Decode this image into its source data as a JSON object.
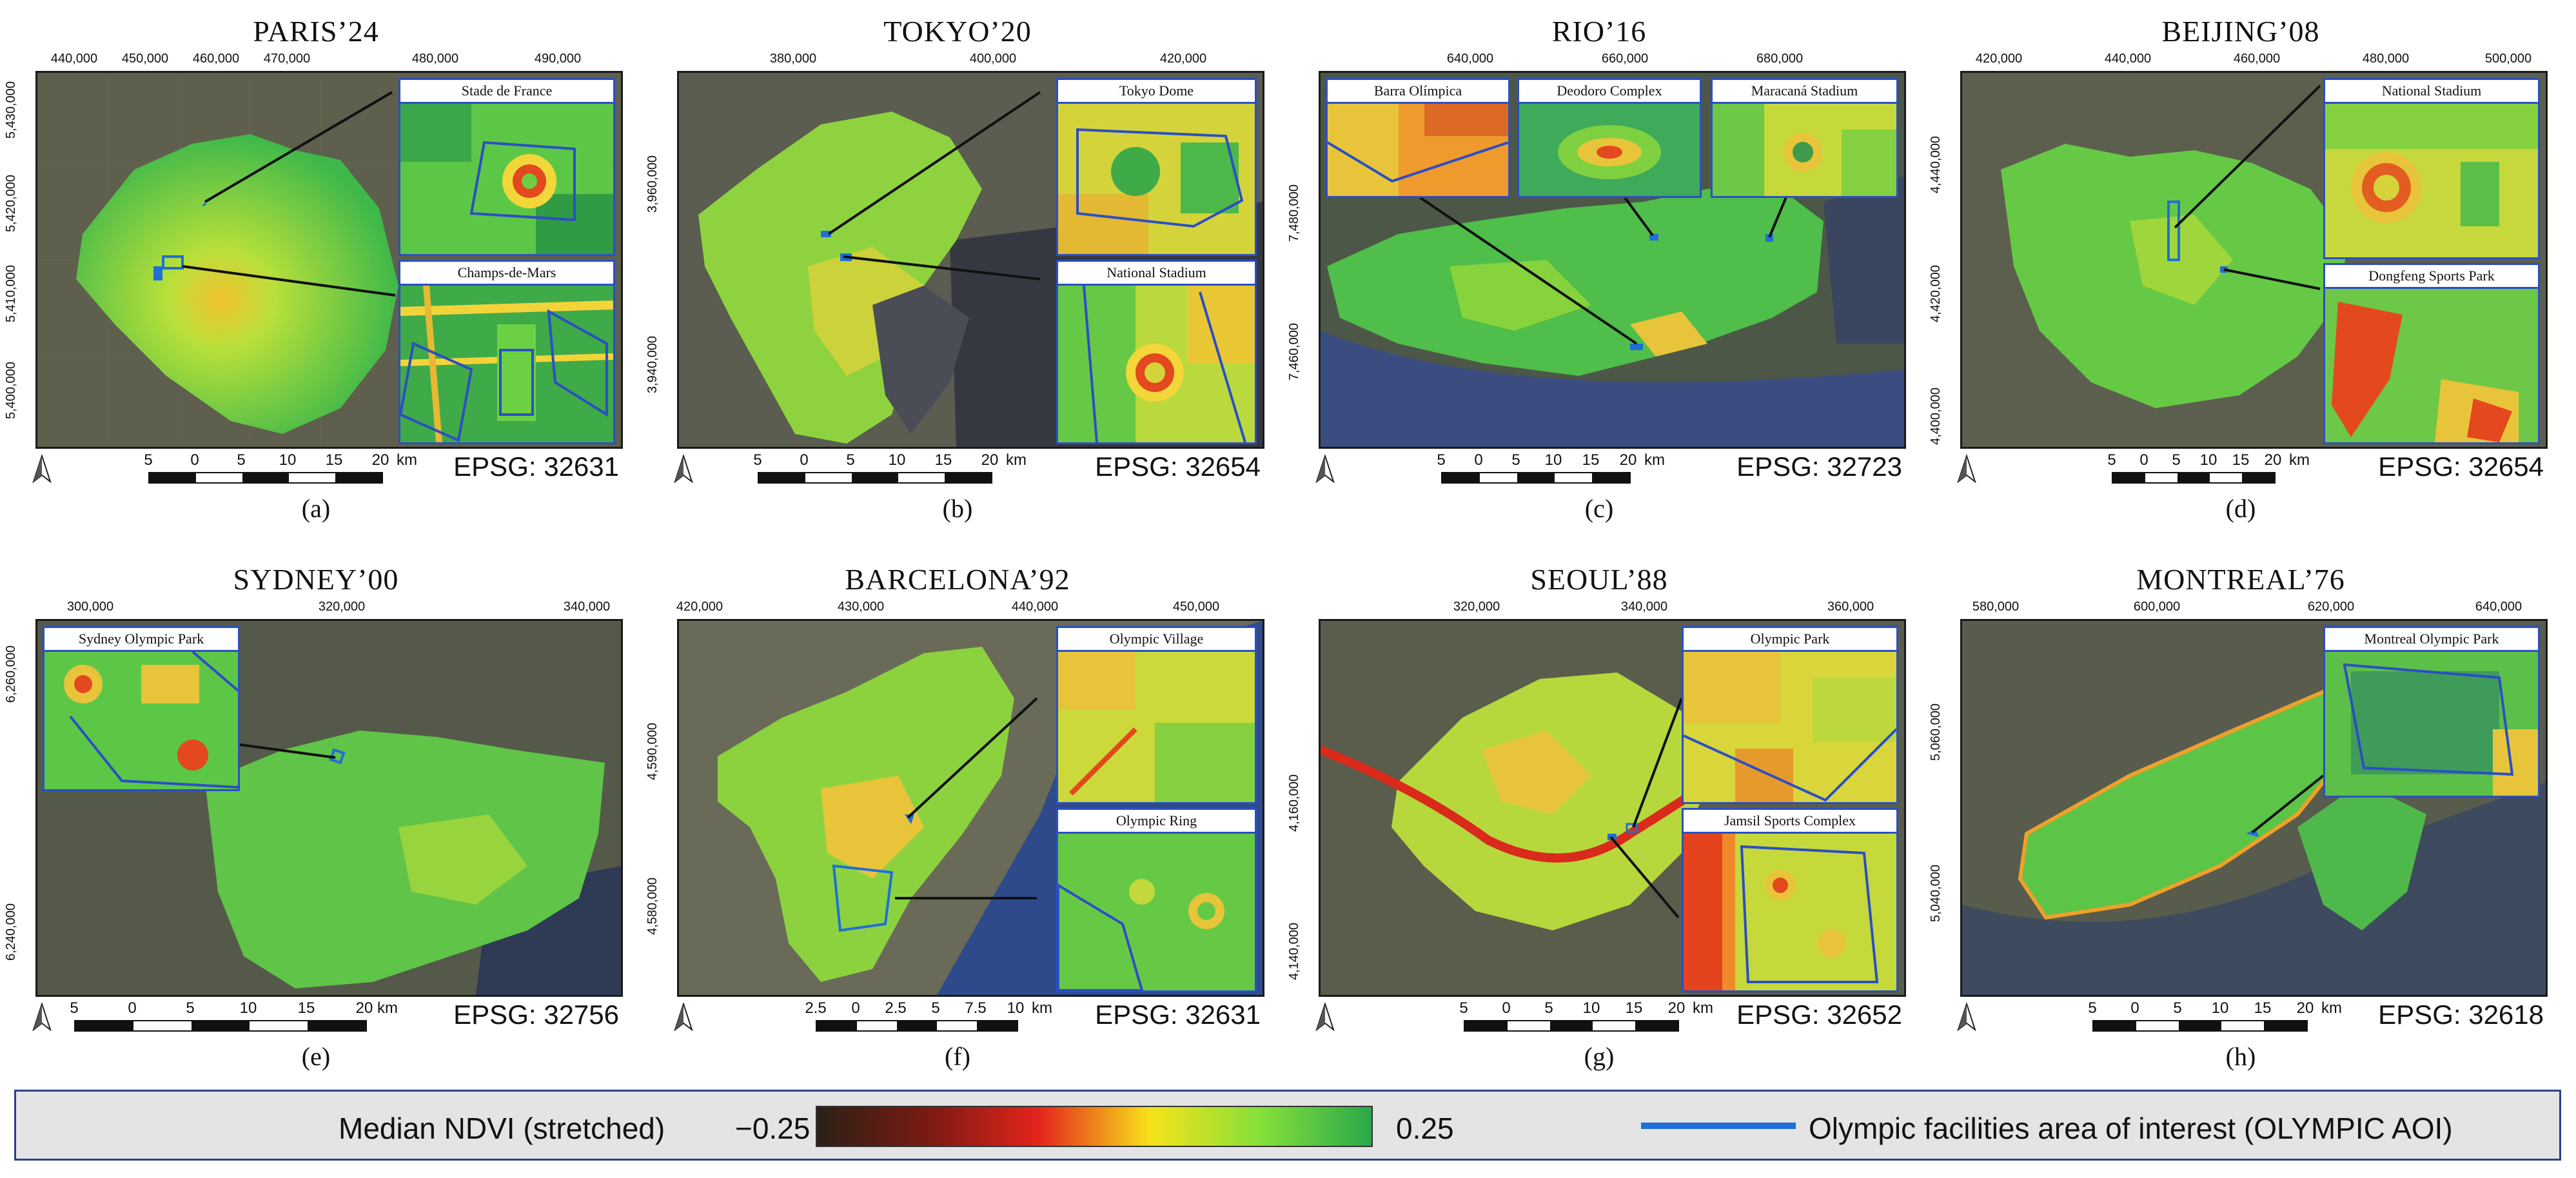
{
  "panels": [
    {
      "title": "PARIS’24",
      "caption": "(a)",
      "epsg": "EPSG: 32631",
      "x_ticks": [
        "440,000",
        "450,000",
        "460,000",
        "470,000",
        "480,000",
        "490,000"
      ],
      "y_ticks": [
        "5,430,000",
        "5,420,000",
        "5,410,000",
        "5,400,000"
      ],
      "scale": {
        "labels": [
          "5",
          "0",
          "5",
          "10",
          "15",
          "20"
        ],
        "unit": "km"
      },
      "insets": [
        "Stade de France",
        "Champs-de-Mars"
      ]
    },
    {
      "title": "TOKYO’20",
      "caption": "(b)",
      "epsg": "EPSG: 32654",
      "x_ticks": [
        "380,000",
        "400,000",
        "420,000"
      ],
      "y_ticks": [
        "3,960,000",
        "3,940,000"
      ],
      "scale": {
        "labels": [
          "5",
          "0",
          "5",
          "10",
          "15",
          "20"
        ],
        "unit": "km"
      },
      "insets": [
        "Tokyo Dome",
        "National Stadium"
      ]
    },
    {
      "title": "RIO’16",
      "caption": "(c)",
      "epsg": "EPSG: 32723",
      "x_ticks": [
        "640,000",
        "660,000",
        "680,000"
      ],
      "y_ticks": [
        "7,480,000",
        "7,460,000"
      ],
      "scale": {
        "labels": [
          "5",
          "0",
          "5",
          "10",
          "15",
          "20"
        ],
        "unit": "km"
      },
      "insets": [
        "Barra Olímpica",
        "Deodoro Complex",
        "Maracaná Stadium"
      ]
    },
    {
      "title": "BEIJING’08",
      "caption": "(d)",
      "epsg": "EPSG: 32654",
      "x_ticks": [
        "420,000",
        "440,000",
        "460,000",
        "480,000",
        "500,000"
      ],
      "y_ticks": [
        "4,440,000",
        "4,420,000",
        "4,400,000"
      ],
      "scale": {
        "labels": [
          "5",
          "0",
          "5",
          "10",
          "15",
          "20"
        ],
        "unit": "km"
      },
      "insets": [
        "National Stadium",
        "Dongfeng Sports Park"
      ]
    },
    {
      "title": "SYDNEY’00",
      "caption": "(e)",
      "epsg": "EPSG: 32756",
      "x_ticks": [
        "300,000",
        "320,000",
        "340,000"
      ],
      "y_ticks": [
        "6,260,000",
        "6,240,000"
      ],
      "scale": {
        "labels": [
          "5",
          "0",
          "5",
          "10",
          "15",
          "20"
        ],
        "unit": "km"
      },
      "insets": [
        "Sydney Olympic Park"
      ]
    },
    {
      "title": "BARCELONA’92",
      "caption": "(f)",
      "epsg": "EPSG: 32631",
      "x_ticks": [
        "420,000",
        "430,000",
        "440,000",
        "450,000"
      ],
      "y_ticks": [
        "4,590,000",
        "4,580,000"
      ],
      "scale": {
        "labels": [
          "2.5",
          "0",
          "2.5",
          "5",
          "7.5",
          "10"
        ],
        "unit": "km"
      },
      "insets": [
        "Olympic Village",
        "Olympic Ring"
      ]
    },
    {
      "title": "SEOUL’88",
      "caption": "(g)",
      "epsg": "EPSG: 32652",
      "x_ticks": [
        "320,000",
        "340,000",
        "360,000"
      ],
      "y_ticks": [
        "4,160,000",
        "4,140,000"
      ],
      "scale": {
        "labels": [
          "5",
          "0",
          "5",
          "10",
          "15",
          "20"
        ],
        "unit": "km"
      },
      "insets": [
        "Olympic Park",
        "Jamsil Sports Complex"
      ]
    },
    {
      "title": "MONTREAL’76",
      "caption": "(h)",
      "epsg": "EPSG: 32618",
      "x_ticks": [
        "580,000",
        "600,000",
        "620,000",
        "640,000"
      ],
      "y_ticks": [
        "5,060,000",
        "5,040,000"
      ],
      "scale": {
        "labels": [
          "5",
          "0",
          "5",
          "10",
          "15",
          "20"
        ],
        "unit": "km"
      },
      "insets": [
        "Montreal Olympic Park"
      ]
    }
  ],
  "legend": {
    "ndvi_title": "Median NDVI (stretched)",
    "ndvi_min": "−0.25",
    "ndvi_max": "0.25",
    "aoi_label": "Olympic facilities area of interest (OLYMPIC AOI)",
    "aoi_color": "#1f6fd6",
    "ramp_colors": [
      "#2a2116",
      "#7a1a12",
      "#e3241c",
      "#f7e21a",
      "#86e03a",
      "#2aa84a"
    ]
  }
}
